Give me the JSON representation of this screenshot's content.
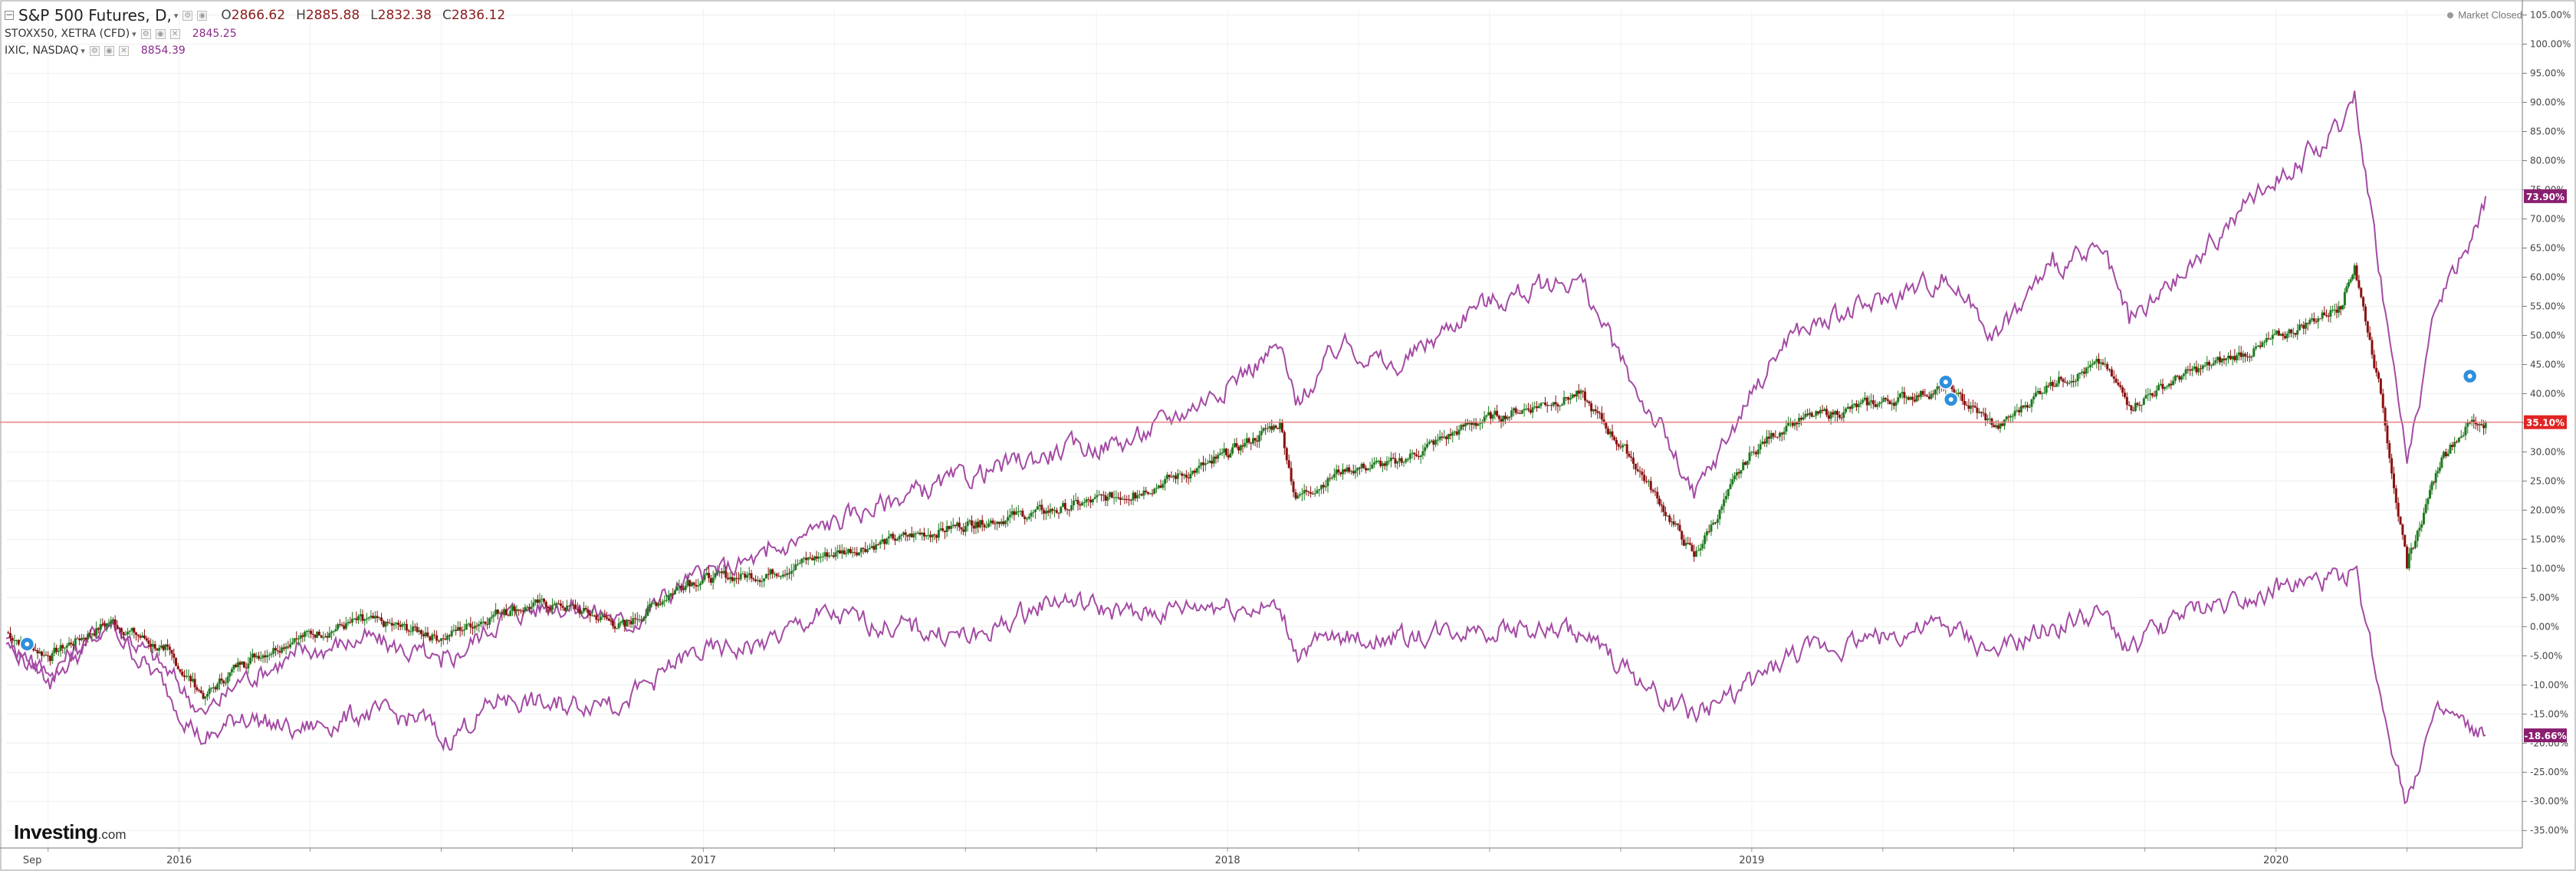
{
  "legend": {
    "main": {
      "symbol": "S&P 500 Futures, D,",
      "open_label": "O",
      "open": "2866.62",
      "high_label": "H",
      "high": "2885.88",
      "low_label": "L",
      "low": "2832.38",
      "close_label": "C",
      "close": "2836.12"
    },
    "compare": [
      {
        "symbol": "STOXX50, XETRA (CFD)",
        "value": "2845.25"
      },
      {
        "symbol": "IXIC, NASDAQ",
        "value": "8854.39"
      }
    ]
  },
  "market_status": "Market Closed",
  "logo": {
    "brand": "Investing",
    "suffix": ".com"
  },
  "colors": {
    "compare_line": "#a44aa4",
    "candle_up": "#1f7a1f",
    "candle_down": "#8b1010",
    "price_line": "#e88484",
    "label_sp": "#e02424",
    "label_purple": "#8a1f6f"
  },
  "chart_data": {
    "type": "line",
    "yaxis_unit": "%",
    "ylim": [
      -38,
      106
    ],
    "yticks": [
      "105.00%",
      "100.00%",
      "95.00%",
      "90.00%",
      "85.00%",
      "80.00%",
      "75.00%",
      "70.00%",
      "65.00%",
      "60.00%",
      "55.00%",
      "50.00%",
      "45.00%",
      "40.00%",
      "35.00%",
      "30.00%",
      "25.00%",
      "20.00%",
      "15.00%",
      "10.00%",
      "5.00%",
      "0.00%",
      "-5.00%",
      "-10.00%",
      "-15.00%",
      "-20.00%",
      "-25.00%",
      "-30.00%",
      "-35.00%"
    ],
    "xlim": [
      0,
      4.8
    ],
    "xticks": [
      {
        "label": "Sep",
        "x": 0.05
      },
      {
        "label": "2016",
        "x": 0.33
      },
      {
        "label": "2017",
        "x": 1.33
      },
      {
        "label": "2018",
        "x": 2.33
      },
      {
        "label": "2019",
        "x": 3.33
      },
      {
        "label": "2020",
        "x": 4.33
      }
    ],
    "current_labels": [
      {
        "series": "IXIC, NASDAQ",
        "text": "73.90%",
        "value": 73.9
      },
      {
        "series": "S&P 500 Futures",
        "text": "35.10%",
        "value": 35.1
      },
      {
        "series": "STOXX50, XETRA (CFD)",
        "text": "-18.66%",
        "value": -18.66
      }
    ],
    "markers": [
      {
        "x": 0.04,
        "value": -3
      },
      {
        "x": 3.7,
        "value": 42
      },
      {
        "x": 3.71,
        "value": 39
      },
      {
        "x": 4.7,
        "value": 43
      }
    ],
    "series": [
      {
        "name": "S&P 500 Futures",
        "style": "candles",
        "x": [
          0,
          0.08,
          0.2,
          0.3,
          0.38,
          0.45,
          0.55,
          0.68,
          0.8,
          0.83,
          0.95,
          1.05,
          1.15,
          1.18,
          1.3,
          1.45,
          1.55,
          1.7,
          1.85,
          2.0,
          2.15,
          2.3,
          2.43,
          2.46,
          2.55,
          2.65,
          2.8,
          3.0,
          3.1,
          3.15,
          3.22,
          3.33,
          3.4,
          3.55,
          3.7,
          3.8,
          3.9,
          4.0,
          4.05,
          4.15,
          4.3,
          4.45,
          4.48,
          4.53,
          4.58,
          4.62,
          4.65,
          4.7,
          4.73
        ],
        "values": [
          -1,
          -5,
          1,
          -4,
          -12,
          -6,
          -2,
          1,
          -1,
          -2,
          3,
          4,
          1,
          0,
          8,
          9,
          12,
          15,
          18,
          20,
          23,
          28,
          35,
          22,
          27,
          28,
          35,
          40,
          29,
          22,
          12,
          30,
          35,
          38,
          41,
          34,
          42,
          45,
          38,
          43,
          48,
          55,
          62,
          40,
          10,
          22,
          30,
          35,
          35.1
        ]
      },
      {
        "name": "IXIC, NASDAQ",
        "style": "line",
        "x": [
          0,
          0.08,
          0.2,
          0.3,
          0.38,
          0.45,
          0.55,
          0.68,
          0.8,
          0.83,
          0.95,
          1.05,
          1.15,
          1.18,
          1.3,
          1.45,
          1.55,
          1.7,
          1.85,
          2.0,
          2.15,
          2.3,
          2.43,
          2.46,
          2.55,
          2.65,
          2.8,
          3.0,
          3.1,
          3.15,
          3.22,
          3.33,
          3.4,
          3.55,
          3.7,
          3.8,
          3.9,
          4.0,
          4.05,
          4.15,
          4.3,
          4.45,
          4.48,
          4.53,
          4.58,
          4.62,
          4.65,
          4.7,
          4.73
        ],
        "values": [
          -2,
          -8,
          1,
          -7,
          -15,
          -9,
          -5,
          -2,
          -5,
          -7,
          2,
          4,
          2,
          0,
          8,
          12,
          17,
          22,
          26,
          30,
          32,
          40,
          48,
          38,
          49,
          44,
          55,
          60,
          42,
          35,
          22,
          40,
          50,
          55,
          60,
          50,
          62,
          64,
          52,
          60,
          75,
          85,
          92,
          60,
          28,
          48,
          58,
          66,
          73.9
        ]
      },
      {
        "name": "STOXX50, XETRA (CFD)",
        "style": "line",
        "x": [
          0,
          0.08,
          0.2,
          0.3,
          0.38,
          0.45,
          0.55,
          0.68,
          0.8,
          0.83,
          0.95,
          1.05,
          1.15,
          1.18,
          1.3,
          1.45,
          1.55,
          1.7,
          1.85,
          2.0,
          2.15,
          2.3,
          2.43,
          2.46,
          2.55,
          2.65,
          2.8,
          3.0,
          3.1,
          3.15,
          3.22,
          3.33,
          3.4,
          3.55,
          3.7,
          3.8,
          3.9,
          4.0,
          4.05,
          4.15,
          4.3,
          4.45,
          4.48,
          4.53,
          4.58,
          4.62,
          4.65,
          4.7,
          4.73
        ],
        "values": [
          -3,
          -9,
          0,
          -10,
          -20,
          -15,
          -18,
          -15,
          -16,
          -20,
          -12,
          -14,
          -12,
          -13,
          -5,
          -3,
          2,
          0,
          -2,
          5,
          2,
          4,
          3,
          -4,
          -2,
          -2,
          0,
          -1,
          -8,
          -12,
          -15,
          -10,
          -5,
          -2,
          0,
          -5,
          0,
          2,
          -4,
          2,
          6,
          8,
          10,
          -12,
          -30,
          -18,
          -15,
          -18,
          -18.66
        ]
      }
    ]
  }
}
